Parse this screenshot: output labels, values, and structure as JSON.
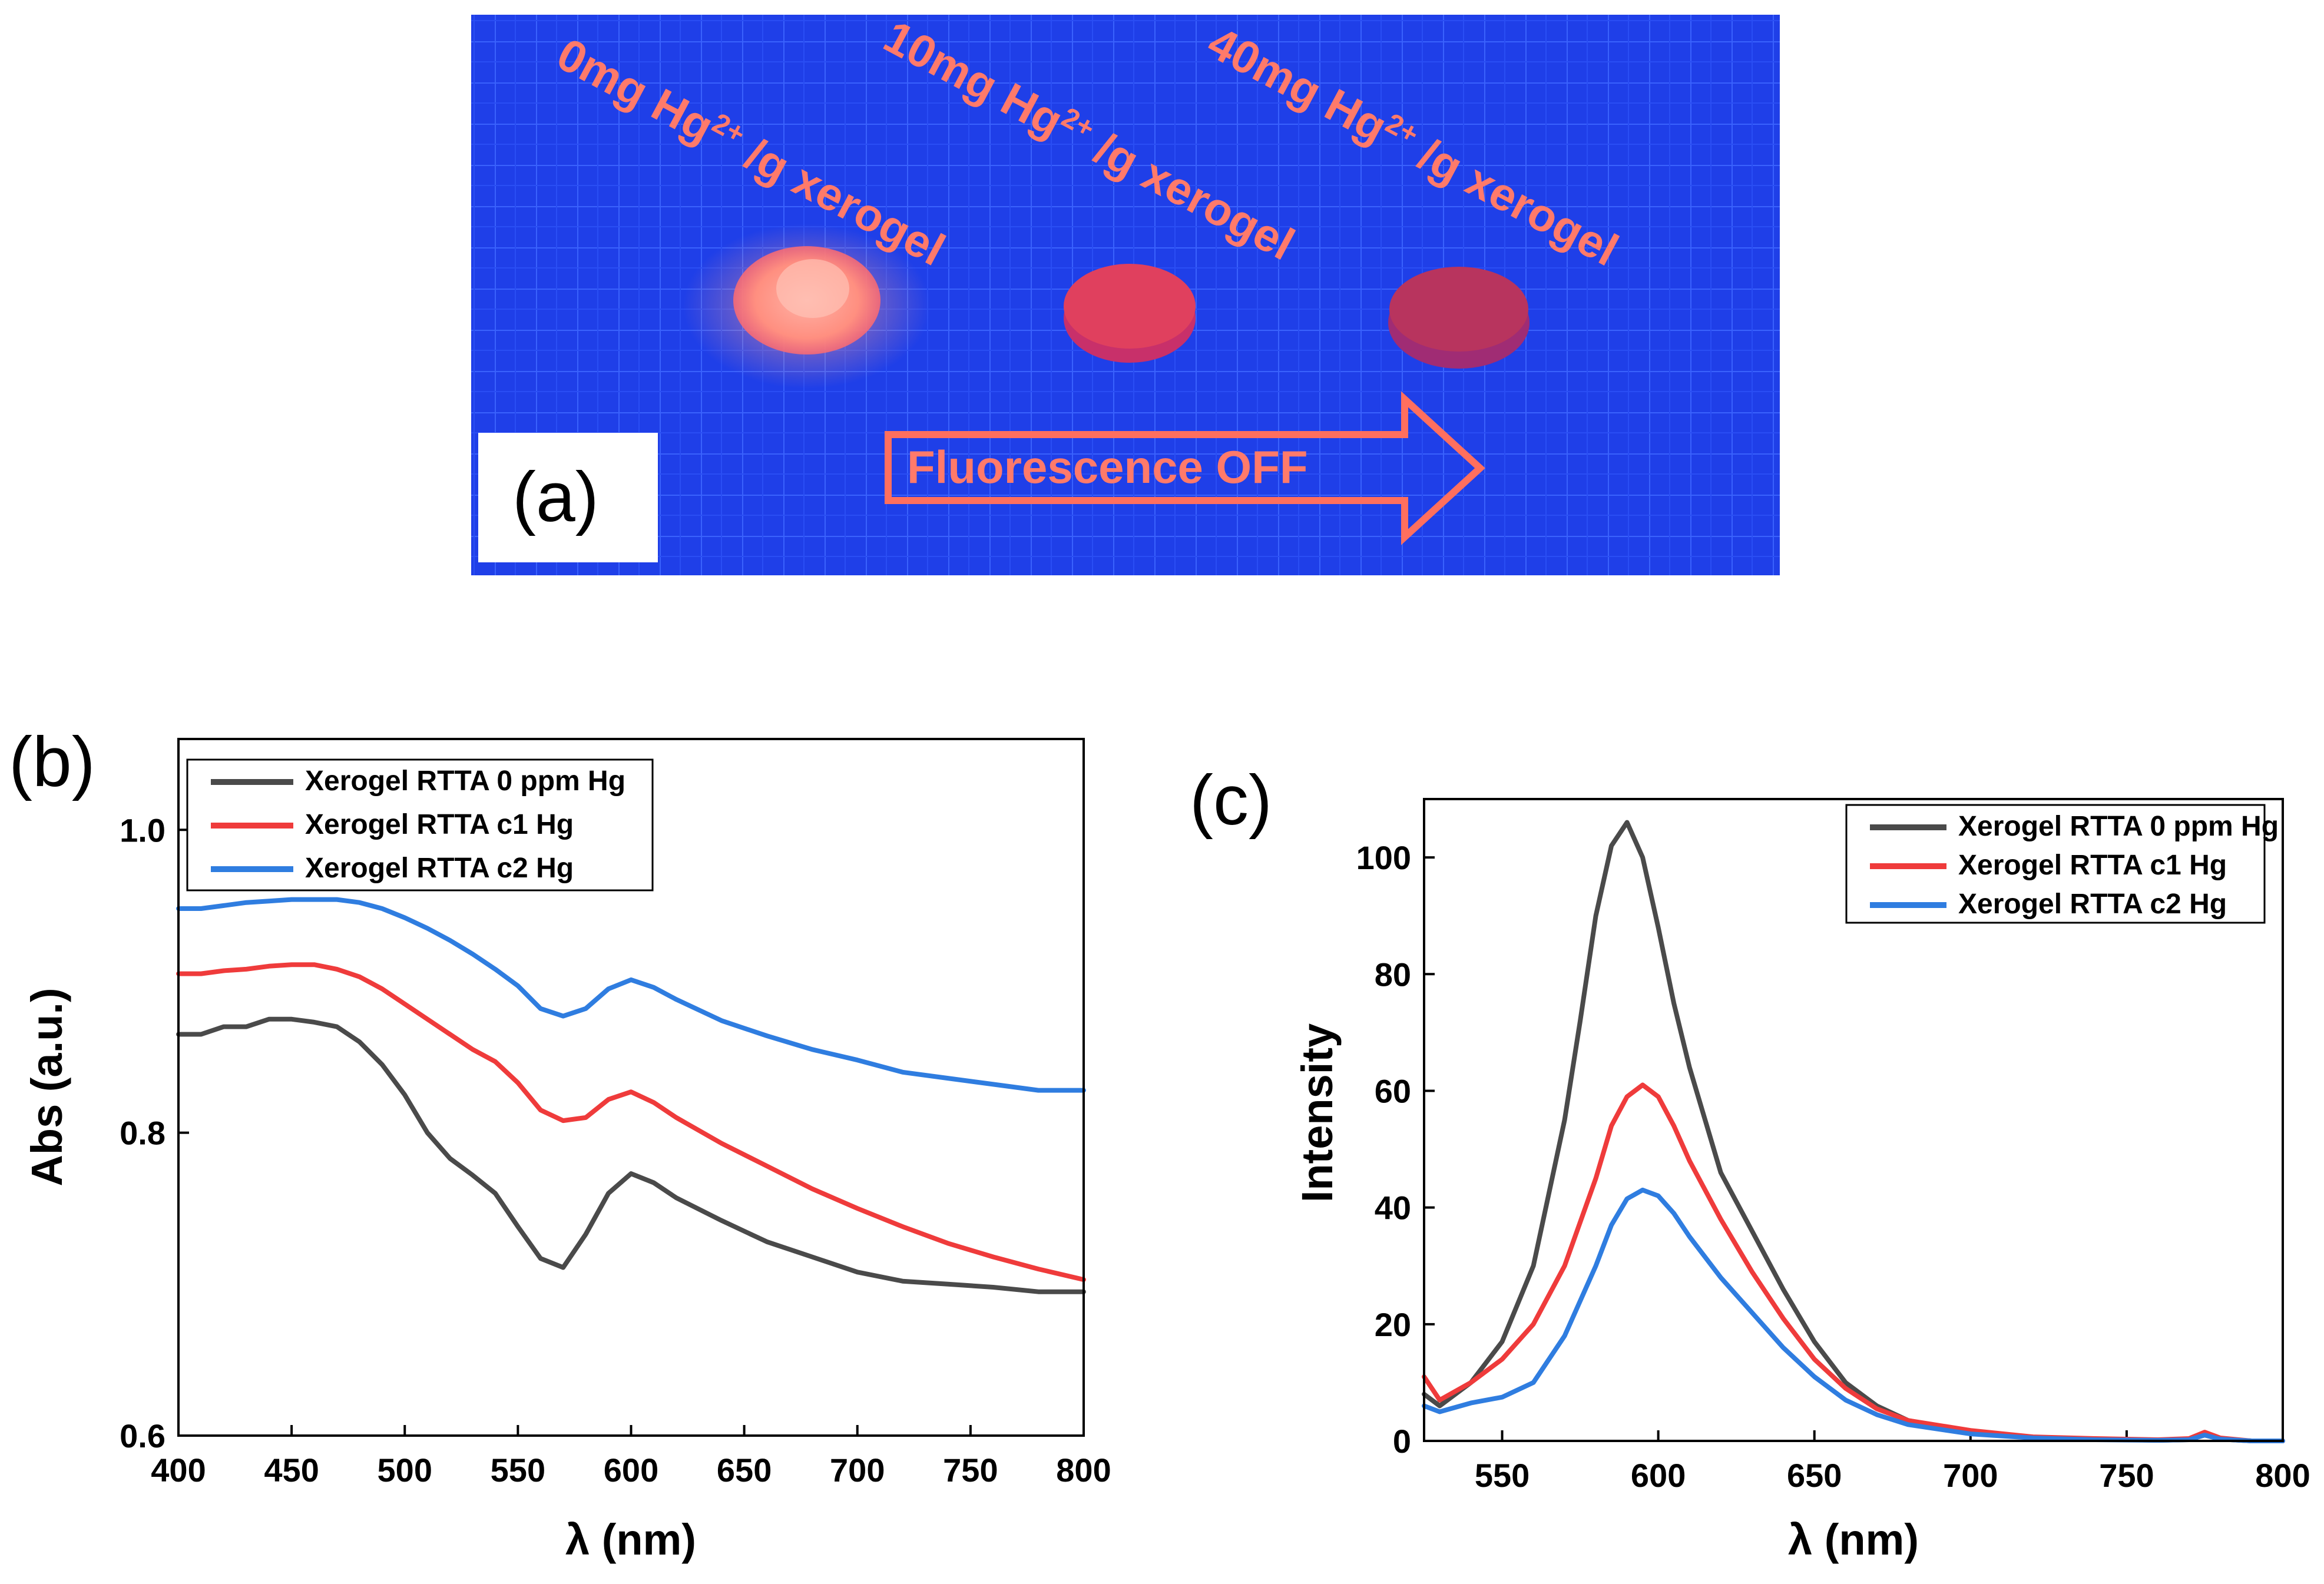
{
  "colors": {
    "photo_bg": "#1f3fe8",
    "photo_grid": "#3a62ff",
    "label_salmon": "#ff7a6a",
    "series": [
      "#4a4a4a",
      "#ef3b3b",
      "#2f7de0"
    ]
  },
  "panel_a": {
    "letter": "(a)",
    "samples": [
      {
        "amount": "0mg Hg",
        "sup": "2+",
        "rest": "/g xerogel"
      },
      {
        "amount": "10mg Hg",
        "sup": "2+",
        "rest": "/g xerogel"
      },
      {
        "amount": "40mg Hg",
        "sup": "2+",
        "rest": "/g xerogel"
      }
    ],
    "arrow_label": "Fluorescence OFF"
  },
  "chart_data": [
    {
      "panel": "(b)",
      "type": "line",
      "xlabel": "λ (nm)",
      "ylabel": "Abs (a.u.)",
      "xlim": [
        400,
        800
      ],
      "ylim": [
        0.6,
        1.06
      ],
      "xticks": [
        400,
        450,
        500,
        550,
        600,
        650,
        700,
        750,
        800
      ],
      "yticks": [
        0.6,
        0.8,
        1.0
      ],
      "ytick_labels": [
        "0.6",
        "0.8",
        "1.0"
      ],
      "legend_position": "top-left",
      "series": [
        {
          "name": "Xerogel RTTA 0 ppm Hg",
          "x": [
            400,
            410,
            420,
            430,
            440,
            450,
            460,
            470,
            480,
            490,
            500,
            510,
            520,
            530,
            540,
            550,
            560,
            570,
            580,
            590,
            600,
            610,
            620,
            640,
            660,
            680,
            700,
            720,
            740,
            760,
            780,
            800
          ],
          "y": [
            0.865,
            0.865,
            0.87,
            0.87,
            0.875,
            0.875,
            0.873,
            0.87,
            0.86,
            0.845,
            0.825,
            0.8,
            0.783,
            0.772,
            0.76,
            0.738,
            0.717,
            0.711,
            0.733,
            0.76,
            0.773,
            0.767,
            0.757,
            0.742,
            0.728,
            0.718,
            0.708,
            0.702,
            0.7,
            0.698,
            0.695,
            0.695
          ]
        },
        {
          "name": "Xerogel RTTA c1 Hg",
          "x": [
            400,
            410,
            420,
            430,
            440,
            450,
            460,
            470,
            480,
            490,
            500,
            510,
            520,
            530,
            540,
            550,
            560,
            570,
            580,
            590,
            600,
            610,
            620,
            640,
            660,
            680,
            700,
            720,
            740,
            760,
            780,
            800
          ],
          "y": [
            0.905,
            0.905,
            0.907,
            0.908,
            0.91,
            0.911,
            0.911,
            0.908,
            0.903,
            0.895,
            0.885,
            0.875,
            0.865,
            0.855,
            0.847,
            0.833,
            0.815,
            0.808,
            0.81,
            0.822,
            0.827,
            0.82,
            0.81,
            0.793,
            0.778,
            0.763,
            0.75,
            0.738,
            0.727,
            0.718,
            0.71,
            0.703
          ]
        },
        {
          "name": "Xerogel RTTA c2 Hg",
          "x": [
            400,
            410,
            420,
            430,
            440,
            450,
            460,
            470,
            480,
            490,
            500,
            510,
            520,
            530,
            540,
            550,
            560,
            570,
            580,
            590,
            600,
            610,
            620,
            640,
            660,
            680,
            700,
            720,
            740,
            760,
            780,
            800
          ],
          "y": [
            0.948,
            0.948,
            0.95,
            0.952,
            0.953,
            0.954,
            0.954,
            0.954,
            0.952,
            0.948,
            0.942,
            0.935,
            0.927,
            0.918,
            0.908,
            0.897,
            0.882,
            0.877,
            0.882,
            0.895,
            0.901,
            0.896,
            0.888,
            0.874,
            0.864,
            0.855,
            0.848,
            0.84,
            0.836,
            0.832,
            0.828,
            0.828
          ]
        }
      ]
    },
    {
      "panel": "(c)",
      "type": "line",
      "xlabel": "λ (nm)",
      "ylabel": "Intensity",
      "xlim": [
        525,
        800
      ],
      "ylim": [
        0,
        110
      ],
      "xticks": [
        550,
        600,
        650,
        700,
        750,
        800
      ],
      "yticks": [
        0,
        20,
        40,
        60,
        80,
        100
      ],
      "ytick_labels": [
        "0",
        "20",
        "40",
        "60",
        "80",
        "100"
      ],
      "legend_position": "top-right",
      "series": [
        {
          "name": "Xerogel RTTA 0 ppm Hg",
          "x": [
            525,
            530,
            540,
            550,
            560,
            570,
            575,
            580,
            585,
            590,
            595,
            600,
            605,
            610,
            620,
            630,
            640,
            650,
            660,
            670,
            680,
            700,
            720,
            740,
            760,
            770,
            775,
            780,
            790,
            800
          ],
          "y": [
            8,
            6,
            10,
            17,
            30,
            55,
            72,
            90,
            102,
            106,
            100,
            88,
            75,
            64,
            46,
            36,
            26,
            17,
            10,
            6,
            3.5,
            1.5,
            0.5,
            0.3,
            0.1,
            0.2,
            1,
            0.3,
            0,
            0
          ]
        },
        {
          "name": "Xerogel RTTA c1 Hg",
          "x": [
            525,
            530,
            540,
            550,
            560,
            570,
            580,
            585,
            590,
            595,
            600,
            605,
            610,
            620,
            630,
            640,
            650,
            660,
            670,
            680,
            700,
            720,
            740,
            760,
            770,
            775,
            780,
            790,
            800
          ],
          "y": [
            11,
            7,
            10,
            14,
            20,
            30,
            45,
            54,
            59,
            61,
            59,
            54,
            48,
            38,
            29,
            21,
            14,
            9,
            5.5,
            3.5,
            1.8,
            0.7,
            0.4,
            0.2,
            0.4,
            1.5,
            0.5,
            0,
            0
          ]
        },
        {
          "name": "Xerogel RTTA c2 Hg",
          "x": [
            525,
            530,
            540,
            550,
            560,
            570,
            580,
            585,
            590,
            595,
            600,
            605,
            610,
            620,
            630,
            640,
            650,
            660,
            670,
            680,
            700,
            720,
            740,
            760,
            770,
            775,
            780,
            790,
            800
          ],
          "y": [
            6,
            5,
            6.5,
            7.5,
            10,
            18,
            30,
            37,
            41.5,
            43,
            42,
            39,
            35,
            28,
            22,
            16,
            11,
            7,
            4.5,
            2.8,
            1.2,
            0.5,
            0.2,
            0.1,
            0.2,
            1,
            0.3,
            0,
            0
          ]
        }
      ]
    }
  ]
}
